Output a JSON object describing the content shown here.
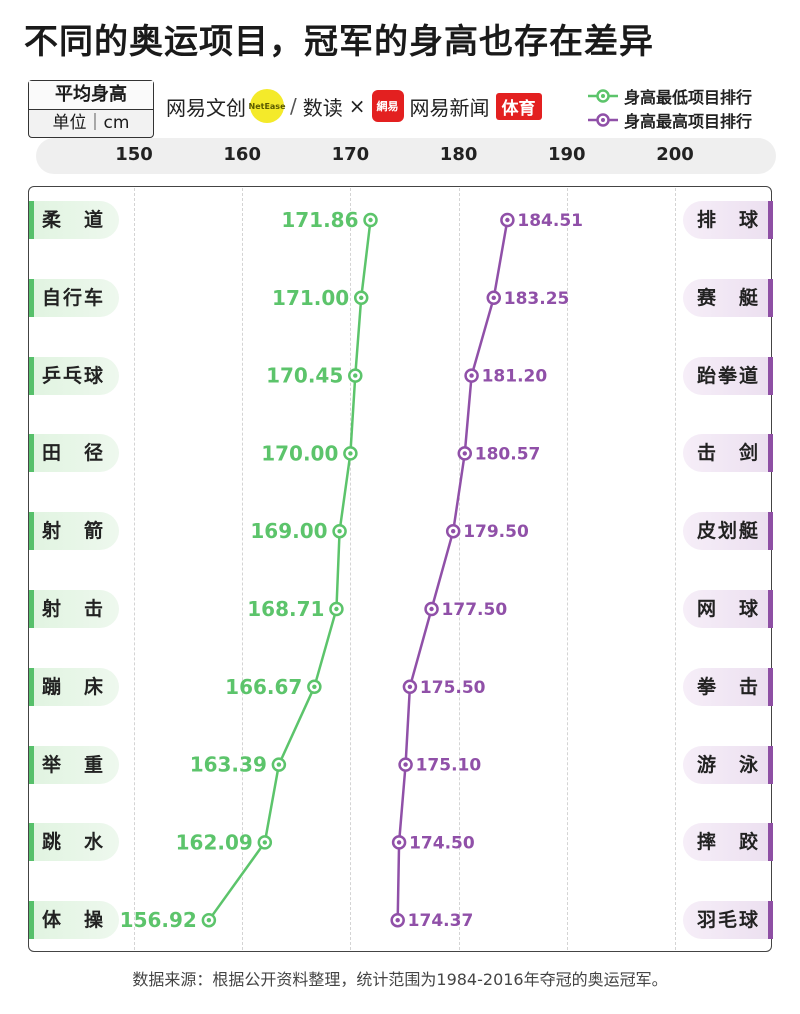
{
  "title": "不同的奥运项目，冠军的身高也存在差异",
  "unit_box": {
    "line1": "平均身高",
    "line2": "单位｜cm"
  },
  "brands": {
    "brand1": "网易文创",
    "brand1_logo": "NetEase",
    "brand2": "数读",
    "times": "×",
    "brand3_logo": "網易",
    "brand3": "网易新闻",
    "brand3_tag": "体育"
  },
  "legend": {
    "low": "身高最低项目排行",
    "high": "身高最高项目排行"
  },
  "colors": {
    "low": "#5cc46b",
    "high": "#9050a8"
  },
  "footer": "数据来源：根据公开资料整理，统计范围为1984-2016年夺冠的奥运冠军。",
  "chart_data": {
    "type": "line",
    "x_ticks": [
      150,
      160,
      170,
      180,
      190,
      200
    ],
    "xlim": [
      150,
      200
    ],
    "grid": true,
    "series": [
      {
        "name": "身高最低项目排行",
        "categories": [
          "柔道",
          "自行车",
          "乒乓球",
          "田径",
          "射箭",
          "射击",
          "蹦床",
          "举重",
          "跳水",
          "体操"
        ],
        "category_labels": [
          "柔　道",
          "自行车",
          "乒乓球",
          "田　径",
          "射　箭",
          "射　击",
          "蹦　床",
          "举　重",
          "跳　水",
          "体　操"
        ],
        "values": [
          171.86,
          171.0,
          170.45,
          170.0,
          169.0,
          168.71,
          166.67,
          163.39,
          162.09,
          156.92
        ],
        "value_labels": [
          "171.86",
          "171.00",
          "170.45",
          "170.00",
          "169.00",
          "168.71",
          "166.67",
          "163.39",
          "162.09",
          "156.92"
        ]
      },
      {
        "name": "身高最高项目排行",
        "categories": [
          "排球",
          "赛艇",
          "跆拳道",
          "击剑",
          "皮划艇",
          "网球",
          "拳击",
          "游泳",
          "摔跤",
          "羽毛球"
        ],
        "category_labels": [
          "排　球",
          "赛　艇",
          "跆拳道",
          "击　剑",
          "皮划艇",
          "网　球",
          "拳　击",
          "游　泳",
          "摔　跤",
          "羽毛球"
        ],
        "values": [
          184.51,
          183.25,
          181.2,
          180.57,
          179.5,
          177.5,
          175.5,
          175.1,
          174.5,
          174.37
        ],
        "value_labels": [
          "184.51",
          "183.25",
          "181.20",
          "180.57",
          "179.50",
          "177.50",
          "175.50",
          "175.10",
          "174.50",
          "174.37"
        ]
      }
    ]
  }
}
